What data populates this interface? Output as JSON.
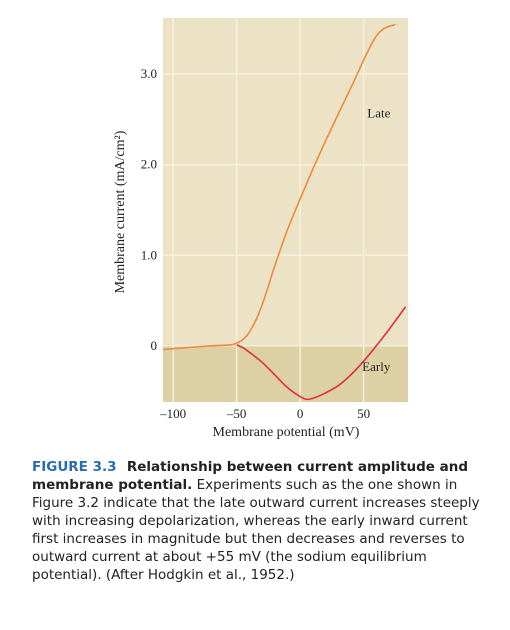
{
  "chart_data": {
    "type": "line",
    "xlabel": "Membrane potential (mV)",
    "ylabel": "Membrane current (mA/cm²)",
    "xlim": [
      -108,
      85
    ],
    "ylim": [
      -0.62,
      3.62
    ],
    "x_ticks": [
      {
        "value": -100,
        "label": "–100"
      },
      {
        "value": -50,
        "label": "–50"
      },
      {
        "value": 0,
        "label": "0"
      },
      {
        "value": 50,
        "label": "50"
      }
    ],
    "y_ticks": [
      {
        "value": 0,
        "label": "0"
      },
      {
        "value": 1,
        "label": "1.0"
      },
      {
        "value": 2,
        "label": "2.0"
      },
      {
        "value": 3,
        "label": "3.0"
      }
    ],
    "grid": true,
    "series": [
      {
        "name": "Late",
        "color": "#f08a3a",
        "label_at": [
          62,
          2.52
        ],
        "x": [
          -108,
          -90,
          -70,
          -55,
          -50,
          -45,
          -40,
          -35,
          -30,
          -25,
          -20,
          -10,
          0,
          10,
          20,
          40,
          60,
          75
        ],
        "y": [
          -0.04,
          -0.02,
          0.0,
          0.01,
          0.03,
          0.07,
          0.15,
          0.28,
          0.45,
          0.66,
          0.88,
          1.28,
          1.62,
          1.95,
          2.26,
          2.85,
          3.42,
          3.55
        ]
      },
      {
        "name": "Early",
        "color": "#e0303a",
        "label_at": [
          60,
          -0.28
        ],
        "x": [
          -50,
          -45,
          -40,
          -30,
          -20,
          -10,
          0,
          5,
          10,
          20,
          30,
          40,
          50,
          60,
          70,
          83
        ],
        "y": [
          0.01,
          -0.02,
          -0.07,
          -0.18,
          -0.32,
          -0.46,
          -0.56,
          -0.59,
          -0.58,
          -0.52,
          -0.44,
          -0.32,
          -0.17,
          0.0,
          0.18,
          0.43
        ]
      }
    ],
    "shading": {
      "upper_color": "#ece3c6",
      "lower_color": "#ddd0a5",
      "grid_color": "#f7f1df"
    }
  },
  "caption": {
    "label": "FIGURE 3.3",
    "title": "Relationship between current amplitude and membrane potential.",
    "text": "Experiments such as the one shown in Figure 3.2 indicate that the late outward current increases steeply with increasing depolarization, whereas the early inward current first increases in magnitude but then decreases and reverses to outward current at about +55 mV (the sodium equilibrium potential). (After Hodgkin et al., 1952.)"
  }
}
